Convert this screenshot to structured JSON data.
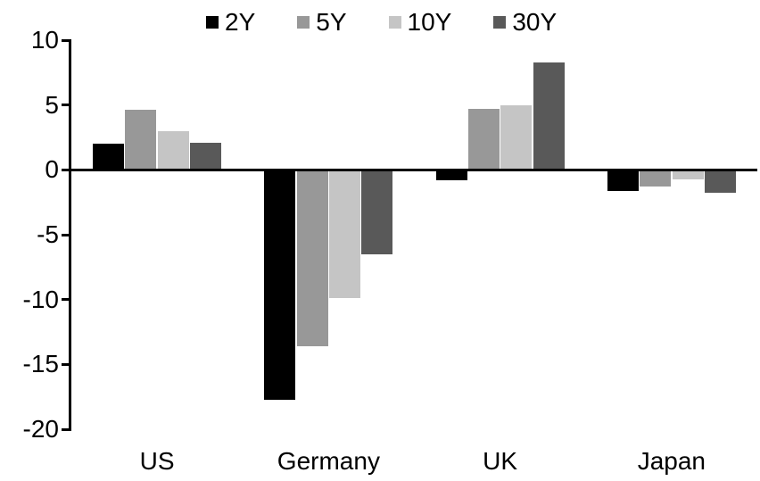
{
  "chart_data": {
    "type": "bar",
    "title": "",
    "categories": [
      "US",
      "Germany",
      "UK",
      "Japan"
    ],
    "series": [
      {
        "name": "2Y",
        "color": "#000000",
        "values": [
          2.0,
          -17.7,
          -0.8,
          -1.6
        ]
      },
      {
        "name": "5Y",
        "color": "#989898",
        "values": [
          4.6,
          -13.6,
          4.7,
          -1.3
        ]
      },
      {
        "name": "10Y",
        "color": "#c5c5c5",
        "values": [
          3.0,
          -9.9,
          5.0,
          -0.7
        ]
      },
      {
        "name": "30Y",
        "color": "#595959",
        "values": [
          2.1,
          -6.5,
          8.3,
          -1.8
        ]
      }
    ],
    "ylim": [
      -20,
      10
    ],
    "yticks": [
      10,
      5,
      0,
      -5,
      -10,
      -15,
      -20
    ],
    "xlabel": "",
    "ylabel": "",
    "legend_position": "top",
    "grid": false,
    "axis_color": "#000000",
    "background_color": "#ffffff"
  }
}
